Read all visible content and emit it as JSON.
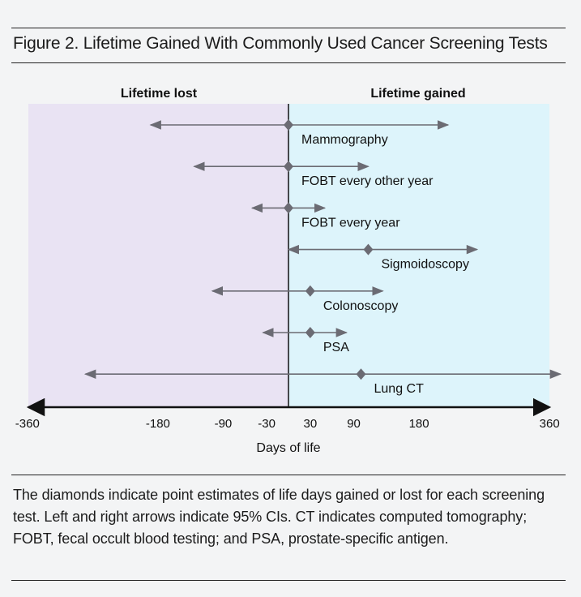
{
  "figure": {
    "title": "Figure 2. Lifetime Gained With Commonly Used Cancer Screening Tests",
    "caption": "The diamonds indicate point estimates of life days gained or lost for each screening test. Left and right arrows indicate 95% CIs. CT indicates computed tomography; FOBT, fecal occult blood testing; and PSA, prostate-specific antigen."
  },
  "colors": {
    "lost_region": "#e9e3f3",
    "gained_region": "#ddf4fb",
    "marker": "#6b6b73",
    "axis": "#111111"
  },
  "chart_data": {
    "type": "forest",
    "region_labels": {
      "left": "Lifetime lost",
      "right": "Lifetime gained"
    },
    "xlabel": "Days of life",
    "xlim": [
      -390,
      375
    ],
    "xticks": [
      -360,
      -180,
      -90,
      -30,
      30,
      90,
      180,
      360
    ],
    "tests": [
      {
        "label": "Mammography",
        "estimate": 0,
        "ci_low": -190,
        "ci_high": 220
      },
      {
        "label": "FOBT every other year",
        "estimate": 0,
        "ci_low": -130,
        "ci_high": 110
      },
      {
        "label": "FOBT every year",
        "estimate": 0,
        "ci_low": -50,
        "ci_high": 50
      },
      {
        "label": "Sigmoidoscopy",
        "estimate": 110,
        "ci_low": 0,
        "ci_high": 260
      },
      {
        "label": "Colonoscopy",
        "estimate": 30,
        "ci_low": -105,
        "ci_high": 130
      },
      {
        "label": "PSA",
        "estimate": 30,
        "ci_low": -35,
        "ci_high": 80
      },
      {
        "label": "Lung CT",
        "estimate": 100,
        "ci_low": -280,
        "ci_high": 375
      }
    ]
  }
}
